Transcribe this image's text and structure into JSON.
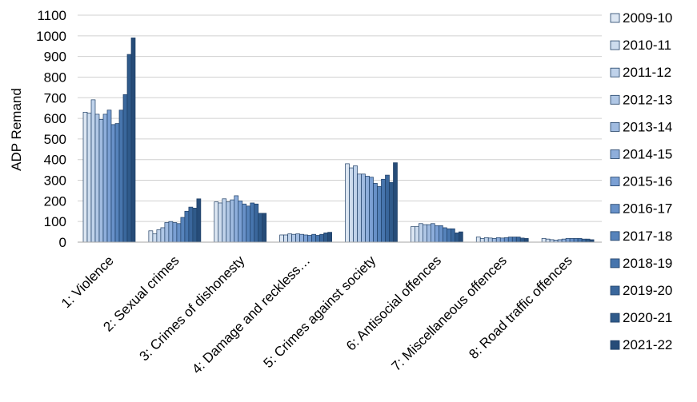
{
  "chart_data": {
    "type": "bar",
    "ylabel": "ADP Remand",
    "ylim": [
      0,
      1100
    ],
    "yticks": [
      0,
      100,
      200,
      300,
      400,
      500,
      600,
      700,
      800,
      900,
      1000,
      1100
    ],
    "grid": true,
    "legend_position": "right",
    "categories": [
      "1: Violence",
      "2: Sexual crimes",
      "3: Crimes of dishonesty",
      "4: Damage and reckless…",
      "5: Crimes against society",
      "6: Antisocial offences",
      "7: Miscellaneous offences",
      "8: Road traffic offences"
    ],
    "series": [
      {
        "name": "2009-10",
        "color": "#dce6f2",
        "values": [
          630,
          55,
          195,
          35,
          380,
          75,
          25,
          18
        ]
      },
      {
        "name": "2010-11",
        "color": "#cddcee",
        "values": [
          625,
          40,
          190,
          35,
          360,
          75,
          18,
          15
        ]
      },
      {
        "name": "2011-12",
        "color": "#bfd2ea",
        "values": [
          690,
          60,
          210,
          40,
          370,
          90,
          22,
          12
        ]
      },
      {
        "name": "2012-13",
        "color": "#b0c7e5",
        "values": [
          620,
          70,
          195,
          38,
          330,
          85,
          20,
          10
        ]
      },
      {
        "name": "2013-14",
        "color": "#a0bbe0",
        "values": [
          595,
          95,
          205,
          40,
          330,
          85,
          18,
          12
        ]
      },
      {
        "name": "2014-15",
        "color": "#8eaedb",
        "values": [
          620,
          100,
          225,
          38,
          320,
          90,
          22,
          15
        ]
      },
      {
        "name": "2015-16",
        "color": "#7ba0d4",
        "values": [
          640,
          95,
          200,
          35,
          315,
          80,
          20,
          18
        ]
      },
      {
        "name": "2016-17",
        "color": "#6891c8",
        "values": [
          570,
          90,
          185,
          33,
          285,
          80,
          22,
          18
        ]
      },
      {
        "name": "2017-18",
        "color": "#5683bb",
        "values": [
          575,
          120,
          175,
          38,
          270,
          70,
          25,
          18
        ]
      },
      {
        "name": "2018-19",
        "color": "#4775ad",
        "values": [
          640,
          150,
          190,
          33,
          305,
          65,
          25,
          18
        ]
      },
      {
        "name": "2019-20",
        "color": "#3a679c",
        "values": [
          715,
          170,
          185,
          38,
          325,
          65,
          25,
          15
        ]
      },
      {
        "name": "2020-21",
        "color": "#2f5a8a",
        "values": [
          910,
          165,
          140,
          45,
          290,
          45,
          20,
          15
        ]
      },
      {
        "name": "2021-22",
        "color": "#264c78",
        "values": [
          990,
          210,
          140,
          48,
          385,
          50,
          18,
          12
        ]
      }
    ]
  }
}
